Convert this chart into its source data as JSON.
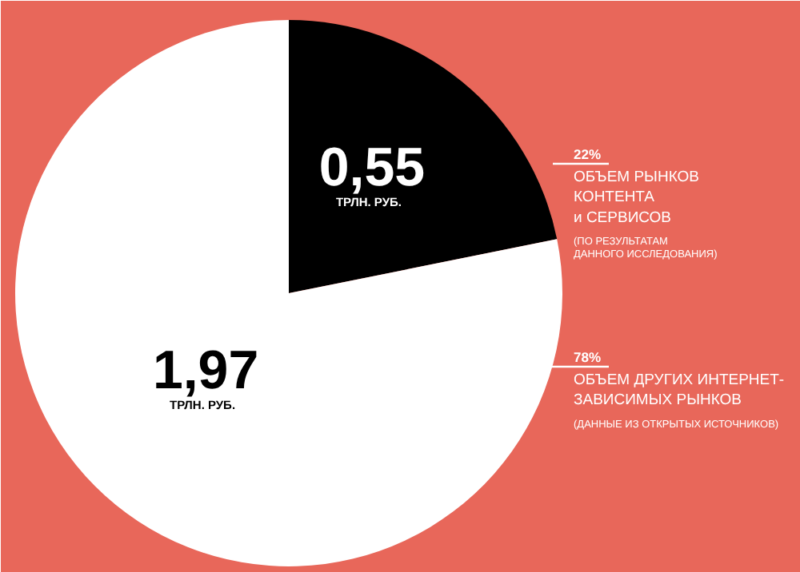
{
  "chart_data": {
    "type": "pie",
    "categories": [
      "ОБЪЕМ РЫНКОВ\nКОНТЕНТА\nи СЕРВИСОВ",
      "ОБЪЕМ ДРУГИХ ИНТЕРНЕТ-\nЗАВИСИМЫХ РЫНКОВ"
    ],
    "values": [
      0.55,
      1.97
    ],
    "colors": [
      "#000000",
      "#ffffff"
    ],
    "value_labels": [
      "0,55",
      "1,97"
    ],
    "annotations": [
      "ТРЛН. РУБ.",
      "ТРЛН. РУБ.",
      "22%",
      "78%",
      "(ПО РЕЗУЛЬТАТАМ\nДАННОГО ИССЛЕДОВАНИЯ)",
      "(ДАННЫЕ ИЗ ОТКРЫТЫХ ИСТОЧНИКОВ)"
    ]
  }
}
